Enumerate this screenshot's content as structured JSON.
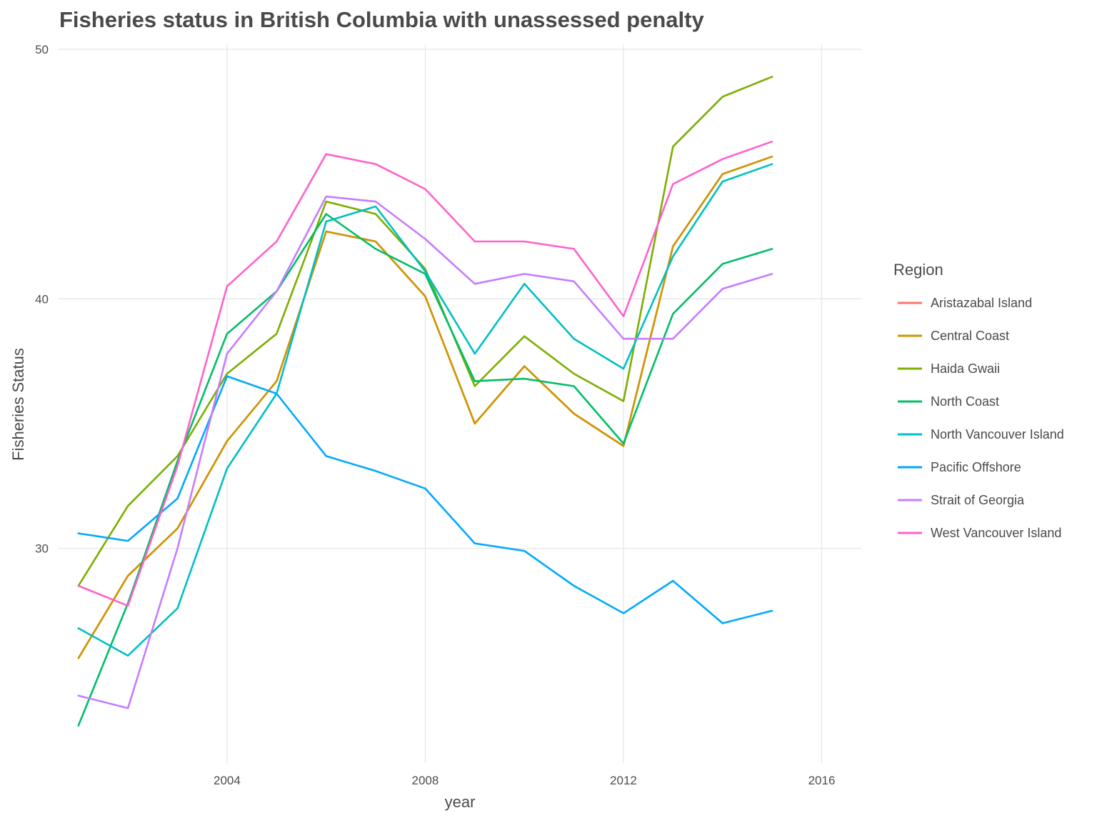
{
  "chart_data": {
    "type": "line",
    "title": "Fisheries status in British Columbia with unassessed penalty",
    "xlabel": "year",
    "ylabel": "Fisheries Status",
    "xlim": [
      2000.6,
      2016.8
    ],
    "ylim": [
      21.4,
      50.2
    ],
    "x_ticks": [
      2004,
      2008,
      2012,
      2016
    ],
    "y_ticks": [
      30,
      40,
      50
    ],
    "x_tick_labels": [
      "2004",
      "2008",
      "2012",
      "2016"
    ],
    "y_tick_labels": [
      "30",
      "40",
      "50"
    ],
    "grid": true,
    "legend_title": "Region",
    "legend_position": "right",
    "x": [
      2001,
      2002,
      2003,
      2004,
      2005,
      2006,
      2007,
      2008,
      2009,
      2010,
      2011,
      2012,
      2013,
      2014,
      2015
    ],
    "series": [
      {
        "name": "Aristazabal Island",
        "color": "#F8766D",
        "values": [
          25.6,
          28.9,
          30.8,
          34.3,
          36.7,
          42.7,
          42.3,
          40.1,
          35.0,
          37.3,
          35.4,
          34.1,
          42.1,
          45.0,
          45.7
        ]
      },
      {
        "name": "Central Coast",
        "color": "#CD9600",
        "values": [
          25.6,
          28.9,
          30.8,
          34.3,
          36.7,
          42.7,
          42.3,
          40.1,
          35.0,
          37.3,
          35.4,
          34.1,
          42.1,
          45.0,
          45.7
        ]
      },
      {
        "name": "Haida Gwaii",
        "color": "#7CAE00",
        "values": [
          28.5,
          31.7,
          33.7,
          37.0,
          38.6,
          43.9,
          43.4,
          41.2,
          36.5,
          38.5,
          37.0,
          35.9,
          46.1,
          48.1,
          48.9
        ]
      },
      {
        "name": "North Coast",
        "color": "#00BE67",
        "values": [
          22.9,
          27.8,
          33.5,
          38.6,
          40.3,
          43.4,
          42.0,
          41.0,
          36.7,
          36.8,
          36.5,
          34.2,
          39.4,
          41.4,
          42.0
        ]
      },
      {
        "name": "North Vancouver Island",
        "color": "#00BFC4",
        "values": [
          26.8,
          25.7,
          27.6,
          33.2,
          36.2,
          43.1,
          43.7,
          41.1,
          37.8,
          40.6,
          38.4,
          37.2,
          41.7,
          44.7,
          45.4
        ]
      },
      {
        "name": "Pacific Offshore",
        "color": "#00A9FF",
        "values": [
          30.6,
          30.3,
          32.0,
          36.9,
          36.2,
          33.7,
          33.1,
          32.4,
          30.2,
          29.9,
          28.5,
          27.4,
          28.7,
          27.0,
          27.5
        ]
      },
      {
        "name": "Strait of Georgia",
        "color": "#C77CFF",
        "values": [
          24.1,
          23.6,
          30.0,
          37.8,
          40.3,
          44.1,
          43.9,
          42.4,
          40.6,
          41.0,
          40.7,
          38.4,
          38.4,
          40.4,
          41.0
        ]
      },
      {
        "name": "West Vancouver Island",
        "color": "#FF61CC",
        "values": [
          28.5,
          27.7,
          33.3,
          40.5,
          42.3,
          45.8,
          45.4,
          44.4,
          42.3,
          42.3,
          42.0,
          39.3,
          44.6,
          45.6,
          46.3
        ]
      }
    ]
  }
}
